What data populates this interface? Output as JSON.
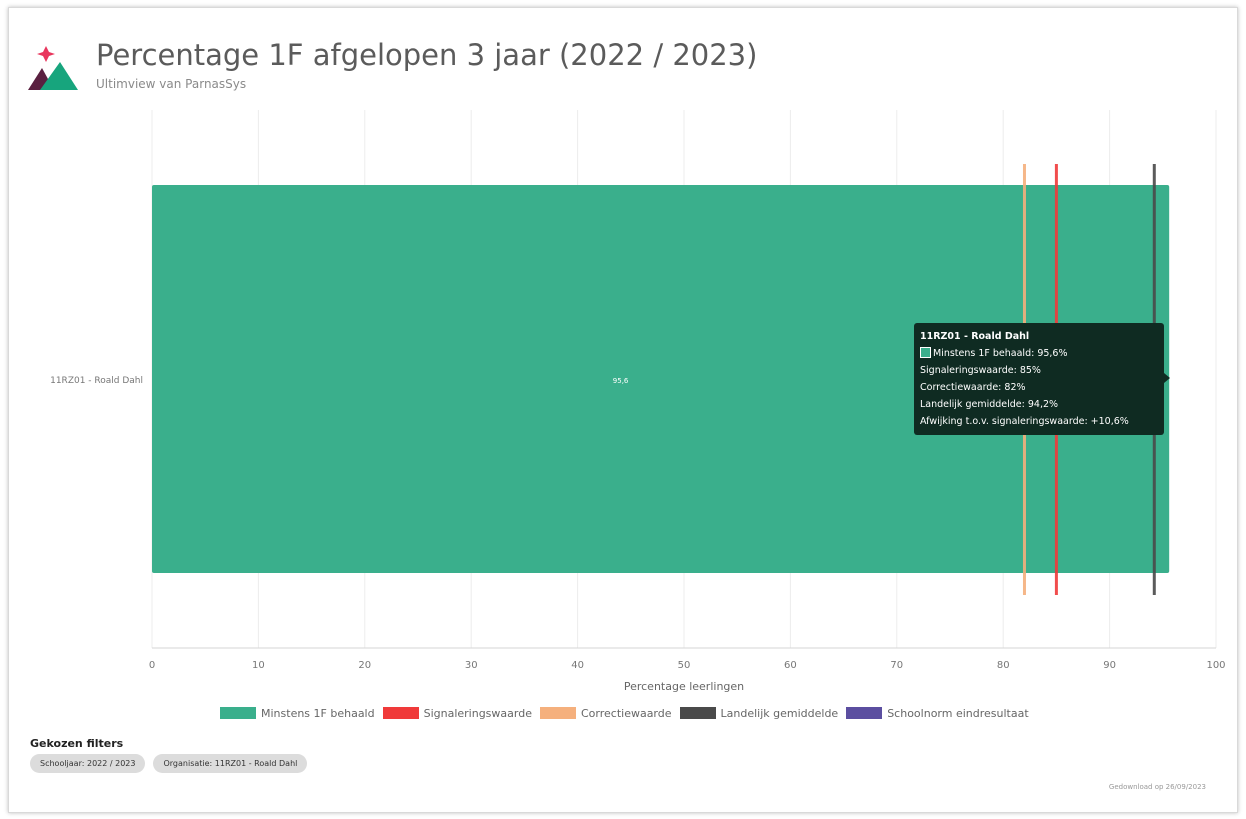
{
  "header": {
    "title": "Percentage 1F afgelopen 3 jaar (2022 / 2023)",
    "subtitle": "Ultimview van ParnasSys"
  },
  "colors": {
    "bar": "#3aaf8c",
    "signalering": "#f03a3a",
    "correctie": "#f5b07d",
    "landelijk": "#4a4a4a",
    "schoolnorm": "#5b4ea0",
    "logo_pink": "#e8365d",
    "logo_green": "#17a57d",
    "logo_dark": "#5a2040"
  },
  "chart_data": {
    "type": "bar",
    "orientation": "horizontal",
    "categories": [
      "11RZ01 - Roald Dahl"
    ],
    "series": [
      {
        "name": "Minstens 1F behaald",
        "values": [
          95.6
        ]
      }
    ],
    "bar_label": "95,6",
    "reference_lines": [
      {
        "name": "Correctiewaarde",
        "value": 82
      },
      {
        "name": "Signaleringswaarde",
        "value": 85
      },
      {
        "name": "Landelijk gemiddelde",
        "value": 94.2
      }
    ],
    "xlabel": "Percentage leerlingen",
    "xlim": [
      0,
      100
    ],
    "xticks": [
      0,
      10,
      20,
      30,
      40,
      50,
      60,
      70,
      80,
      90,
      100
    ],
    "grid": true,
    "legend_position": "bottom"
  },
  "legend": [
    {
      "label": "Minstens 1F behaald",
      "color": "#3aaf8c"
    },
    {
      "label": "Signaleringswaarde",
      "color": "#f03a3a"
    },
    {
      "label": "Correctiewaarde",
      "color": "#f5b07d"
    },
    {
      "label": "Landelijk gemiddelde",
      "color": "#4a4a4a"
    },
    {
      "label": "Schoolnorm eindresultaat",
      "color": "#5b4ea0"
    }
  ],
  "tooltip": {
    "title": "11RZ01 - Roald Dahl",
    "line1": "Minstens 1F behaald: 95,6%",
    "line2": "Signaleringswaarde: 85%",
    "line3": "Correctiewaarde: 82%",
    "line4": "Landelijk gemiddelde: 94,2%",
    "line5": "Afwijking t.o.v. signaleringswaarde: +10,6%"
  },
  "filters": {
    "title": "Gekozen filters",
    "chips": [
      "Schooljaar: 2022 / 2023",
      "Organisatie: 11RZ01 - Roald Dahl"
    ]
  },
  "footer": {
    "download_text": "Gedownload op 26/09/2023"
  }
}
